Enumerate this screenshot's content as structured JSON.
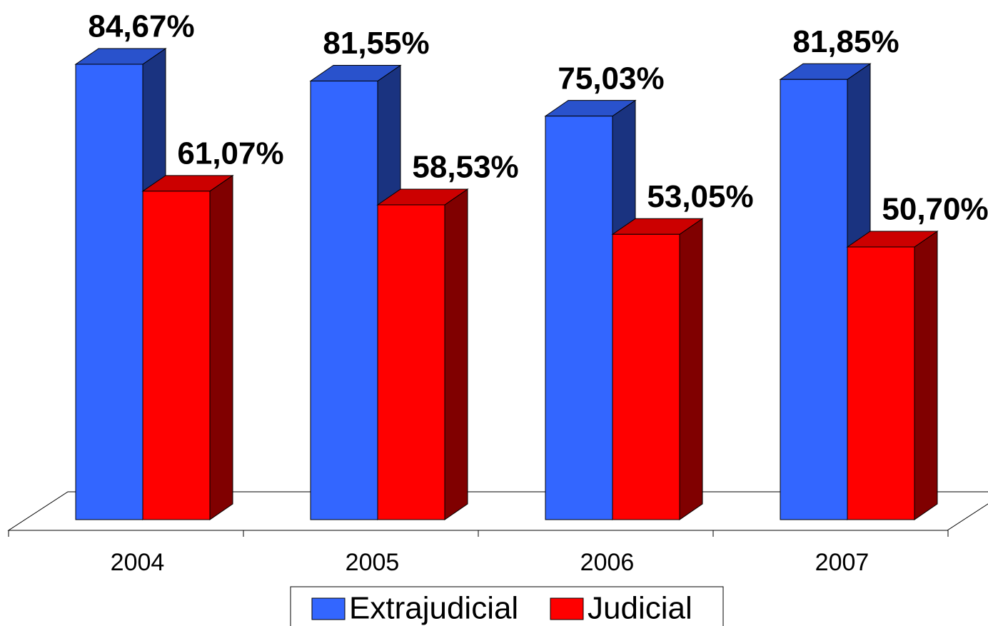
{
  "chart_data": {
    "type": "bar3d",
    "categories": [
      "2004",
      "2005",
      "2006",
      "2007"
    ],
    "series": [
      {
        "name": "Extrajudicial",
        "color": "#3366ff",
        "values": [
          84.67,
          81.55,
          75.03,
          81.85
        ],
        "value_labels": [
          "84,67%",
          "81,55%",
          "75,03%",
          "81,85%"
        ]
      },
      {
        "name": "Judicial",
        "color": "#ff0000",
        "values": [
          61.07,
          58.53,
          53.05,
          50.7
        ],
        "value_labels": [
          "61,07%",
          "58,53%",
          "53,05%",
          "50,70%"
        ]
      }
    ],
    "legend": "bottom"
  }
}
